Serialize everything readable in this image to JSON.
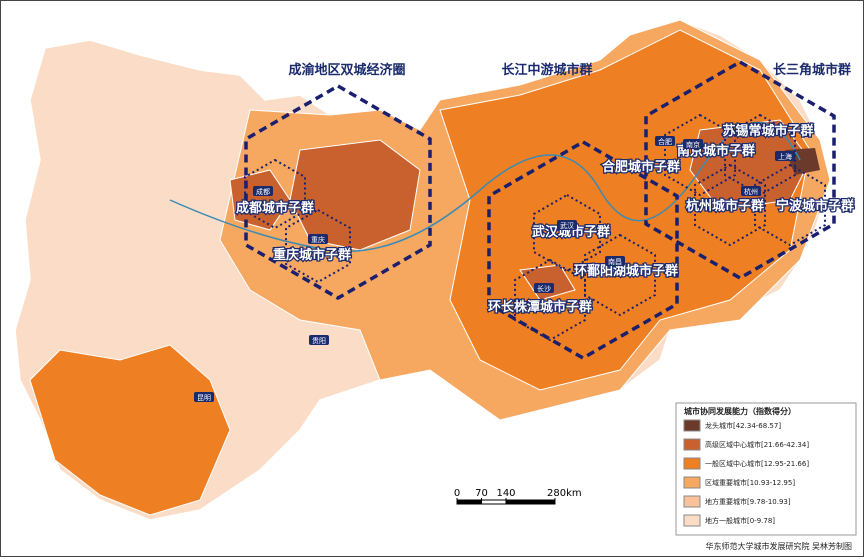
{
  "map": {
    "clusters": [
      "成渝地区双城经济圈",
      "长江中游城市群",
      "长三角城市群"
    ],
    "subclusters": [
      "成都城市子群",
      "重庆城市子群",
      "武汉城市子群",
      "环鄱阳湖城市子群",
      "环长株潭城市子群",
      "合肥城市子群",
      "南京城市子群",
      "苏锡常城市子群",
      "杭州城市子群",
      "宁波城市子群"
    ],
    "cities": [
      "成都",
      "重庆",
      "贵阳",
      "昆明",
      "武汉",
      "南昌",
      "长沙",
      "合肥",
      "南京",
      "上海",
      "杭州"
    ],
    "legend": {
      "title": "城市协同发展能力（指数得分）",
      "items": [
        {
          "label": "龙头城市[42.34-68.57]",
          "color": "#6b3a2a"
        },
        {
          "label": "高级区域中心城市[21.66-42.34]",
          "color": "#c9612f"
        },
        {
          "label": "一般区域中心城市[12.95-21.66]",
          "color": "#ee7f22"
        },
        {
          "label": "区域重要城市[10.93-12.95]",
          "color": "#f6a760"
        },
        {
          "label": "地方重要城市[9.78-10.93]",
          "color": "#f9c29a"
        },
        {
          "label": "地方一般城市[0-9.78]",
          "color": "#fbdcc6"
        }
      ]
    },
    "scale": {
      "ticks": [
        0,
        70,
        140,
        {
          "value": 280,
          "label": "280km"
        }
      ]
    },
    "credit": "华东师范大学城市发展研究院 吴林芳制图"
  }
}
